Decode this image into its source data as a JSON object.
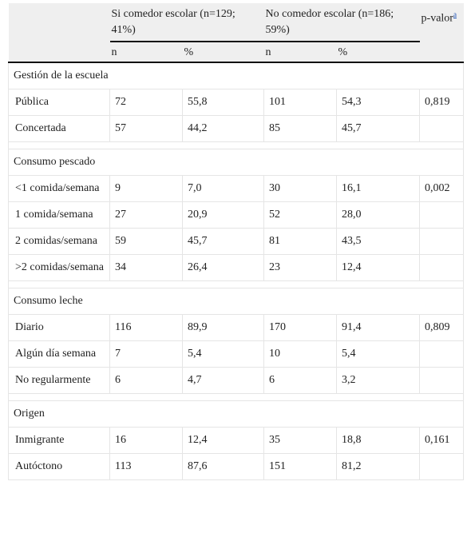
{
  "header": {
    "group_si": "Si comedor escolar (n=129; 41%)",
    "group_no": "No comedor escolar (n=186; 59%)",
    "pvalor": "p-valor",
    "pvalor_note": "a",
    "sub": [
      "n",
      "%",
      "n",
      "%"
    ]
  },
  "sections": [
    {
      "title": "Gestión de la escuela",
      "rows": [
        {
          "label": "Pública",
          "n1": "72",
          "p1": "55,8",
          "n2": "101",
          "p2": "54,3",
          "pv": "0,819"
        },
        {
          "label": "Concertada",
          "n1": "57",
          "p1": "44,2",
          "n2": "85",
          "p2": "45,7",
          "pv": ""
        }
      ]
    },
    {
      "title": "Consumo pescado",
      "rows": [
        {
          "label": "<1 comida/semana",
          "n1": "9",
          "p1": "7,0",
          "n2": "30",
          "p2": "16,1",
          "pv": "0,002"
        },
        {
          "label": "1 comida/semana",
          "n1": "27",
          "p1": "20,9",
          "n2": "52",
          "p2": "28,0",
          "pv": ""
        },
        {
          "label": "2 comidas/semana",
          "n1": "59",
          "p1": "45,7",
          "n2": "81",
          "p2": "43,5",
          "pv": ""
        },
        {
          "label": ">2 comidas/semana",
          "n1": "34",
          "p1": "26,4",
          "n2": "23",
          "p2": "12,4",
          "pv": ""
        }
      ]
    },
    {
      "title": "Consumo leche",
      "rows": [
        {
          "label": "Diario",
          "n1": "116",
          "p1": "89,9",
          "n2": "170",
          "p2": "91,4",
          "pv": "0,809"
        },
        {
          "label": "Algún día semana",
          "n1": "7",
          "p1": "5,4",
          "n2": "10",
          "p2": "5,4",
          "pv": ""
        },
        {
          "label": "No regularmente",
          "n1": "6",
          "p1": "4,7",
          "n2": "6",
          "p2": "3,2",
          "pv": ""
        }
      ]
    },
    {
      "title": "Origen",
      "rows": [
        {
          "label": "Inmigrante",
          "n1": "16",
          "p1": "12,4",
          "n2": "35",
          "p2": "18,8",
          "pv": "0,161"
        },
        {
          "label": "Autóctono",
          "n1": "113",
          "p1": "87,6",
          "n2": "151",
          "p2": "81,2",
          "pv": ""
        }
      ]
    }
  ]
}
